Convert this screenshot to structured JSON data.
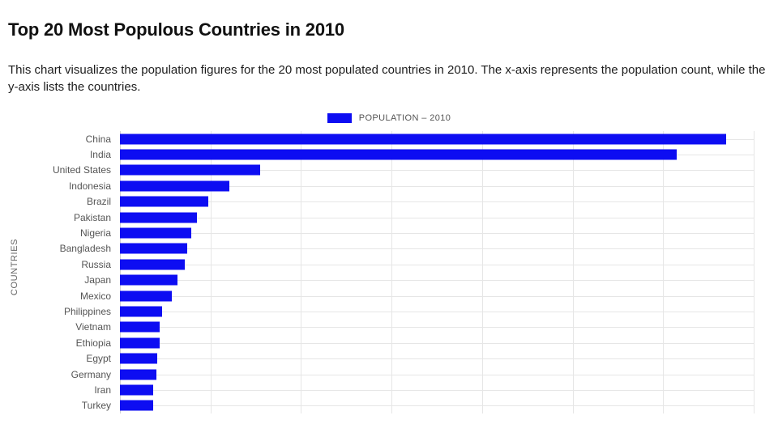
{
  "page": {
    "title": "Top 20 Most Populous Countries in 2010",
    "description": "This chart visualizes the population figures for the 20 most populated countries in 2010. The x-axis represents the population count, while the y-axis lists the countries."
  },
  "legend": {
    "label": "POPULATION – 2010",
    "swatch_color": "#0d0df2"
  },
  "chart_data": {
    "type": "bar",
    "orientation": "horizontal",
    "title": "Top 20 Most Populous Countries in 2010",
    "ylabel": "COUNTRIES",
    "legend": [
      "POPULATION – 2010"
    ],
    "categories": [
      "China",
      "India",
      "United States",
      "Indonesia",
      "Brazil",
      "Pakistan",
      "Nigeria",
      "Bangladesh",
      "Russia",
      "Japan",
      "Mexico",
      "Philippines",
      "Vietnam",
      "Ethiopia",
      "Egypt",
      "Germany",
      "Iran",
      "Turkey"
    ],
    "values": [
      1340000000,
      1230000000,
      309000000,
      242000000,
      195000000,
      170000000,
      158000000,
      148000000,
      143000000,
      128000000,
      114000000,
      93000000,
      87000000,
      87000000,
      82000000,
      81000000,
      74000000,
      73000000
    ],
    "xlim": [
      0,
      1400000000
    ],
    "grid_step": 200000000,
    "bar_color": "#0d0df2",
    "grid": true,
    "legend_position": "top-center",
    "clipped_at_bottom": true
  }
}
